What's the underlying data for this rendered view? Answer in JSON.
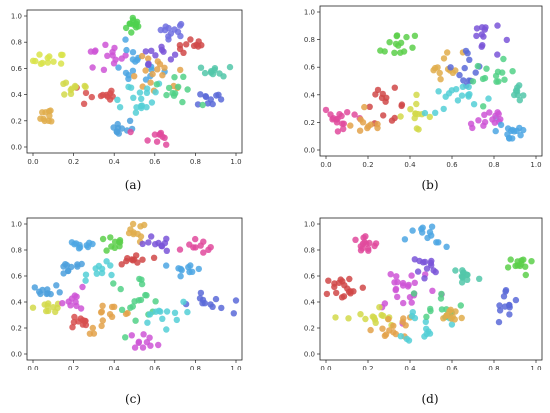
{
  "figure": {
    "captions": [
      "(a)",
      "(b)",
      "(c)",
      "(d)"
    ]
  },
  "chart_data": [
    {
      "type": "scatter",
      "title": "",
      "xlabel": "",
      "ylabel": "",
      "xlim": [
        0.0,
        1.0
      ],
      "ylim": [
        0.0,
        1.0
      ],
      "xticks": [
        "0.0",
        "0.2",
        "0.4",
        "0.6",
        "0.8",
        "1.0"
      ],
      "yticks": [
        "0.0",
        "0.2",
        "0.4",
        "0.6",
        "0.8",
        "1.0"
      ],
      "grid": false,
      "clusters": [
        {
          "color": "#4fd14f",
          "cx": 0.5,
          "cy": 0.93,
          "sx": 0.02,
          "sy": 0.04,
          "n": 12
        },
        {
          "color": "#7070e0",
          "cx": 0.68,
          "cy": 0.9,
          "sx": 0.04,
          "sy": 0.03,
          "n": 12
        },
        {
          "color": "#d04848",
          "cx": 0.79,
          "cy": 0.76,
          "sx": 0.04,
          "sy": 0.03,
          "n": 10
        },
        {
          "color": "#d9e34a",
          "cx": 0.08,
          "cy": 0.66,
          "sx": 0.04,
          "sy": 0.03,
          "n": 12
        },
        {
          "color": "#52c7a9",
          "cx": 0.91,
          "cy": 0.58,
          "sx": 0.04,
          "sy": 0.02,
          "n": 10
        },
        {
          "color": "#ce55d6",
          "cx": 0.35,
          "cy": 0.68,
          "sx": 0.06,
          "sy": 0.06,
          "n": 14
        },
        {
          "color": "#4ca6e3",
          "cx": 0.5,
          "cy": 0.62,
          "sx": 0.07,
          "sy": 0.08,
          "n": 18
        },
        {
          "color": "#e3a24a",
          "cx": 0.62,
          "cy": 0.52,
          "sx": 0.07,
          "sy": 0.08,
          "n": 16
        },
        {
          "color": "#5a6ad8",
          "cx": 0.87,
          "cy": 0.37,
          "sx": 0.03,
          "sy": 0.03,
          "n": 10
        },
        {
          "color": "#d74f4f",
          "cx": 0.33,
          "cy": 0.4,
          "sx": 0.05,
          "sy": 0.05,
          "n": 12
        },
        {
          "color": "#53cfd6",
          "cx": 0.5,
          "cy": 0.38,
          "sx": 0.08,
          "sy": 0.07,
          "n": 18
        },
        {
          "color": "#d2d94a",
          "cx": 0.2,
          "cy": 0.45,
          "sx": 0.05,
          "sy": 0.04,
          "n": 10
        },
        {
          "color": "#e0ad4b",
          "cx": 0.08,
          "cy": 0.25,
          "sx": 0.02,
          "sy": 0.04,
          "n": 10
        },
        {
          "color": "#4ca0dd",
          "cx": 0.42,
          "cy": 0.14,
          "sx": 0.04,
          "sy": 0.04,
          "n": 10
        },
        {
          "color": "#e04a9c",
          "cx": 0.62,
          "cy": 0.08,
          "sx": 0.04,
          "sy": 0.03,
          "n": 10
        },
        {
          "color": "#7a55d8",
          "cx": 0.61,
          "cy": 0.72,
          "sx": 0.04,
          "sy": 0.04,
          "n": 10
        },
        {
          "color": "#52d187",
          "cx": 0.7,
          "cy": 0.42,
          "sx": 0.05,
          "sy": 0.05,
          "n": 12
        }
      ]
    },
    {
      "type": "scatter",
      "title": "",
      "xlabel": "",
      "ylabel": "",
      "xlim": [
        0.0,
        1.0
      ],
      "ylim": [
        0.0,
        1.0
      ],
      "xticks": [
        "0.0",
        "0.2",
        "0.4",
        "0.6",
        "0.8",
        "1.0"
      ],
      "yticks": [
        "0.0",
        "0.2",
        "0.4",
        "0.6",
        "0.8",
        "1.0"
      ],
      "grid": false,
      "clusters": [
        {
          "color": "#5ccf4a",
          "cx": 0.34,
          "cy": 0.77,
          "sx": 0.04,
          "sy": 0.07,
          "n": 14
        },
        {
          "color": "#7a55d8",
          "cx": 0.75,
          "cy": 0.82,
          "sx": 0.04,
          "sy": 0.08,
          "n": 12
        },
        {
          "color": "#e0ad4b",
          "cx": 0.57,
          "cy": 0.62,
          "sx": 0.04,
          "sy": 0.05,
          "n": 12
        },
        {
          "color": "#5a6ad8",
          "cx": 0.68,
          "cy": 0.58,
          "sx": 0.03,
          "sy": 0.08,
          "n": 12
        },
        {
          "color": "#52d187",
          "cx": 0.8,
          "cy": 0.52,
          "sx": 0.05,
          "sy": 0.06,
          "n": 14
        },
        {
          "color": "#e04a9c",
          "cx": 0.08,
          "cy": 0.24,
          "sx": 0.06,
          "sy": 0.04,
          "n": 16
        },
        {
          "color": "#d04848",
          "cx": 0.28,
          "cy": 0.32,
          "sx": 0.05,
          "sy": 0.06,
          "n": 14
        },
        {
          "color": "#d2d94a",
          "cx": 0.42,
          "cy": 0.26,
          "sx": 0.04,
          "sy": 0.06,
          "n": 12
        },
        {
          "color": "#53cfd6",
          "cx": 0.63,
          "cy": 0.36,
          "sx": 0.08,
          "sy": 0.05,
          "n": 18
        },
        {
          "color": "#ce55d6",
          "cx": 0.77,
          "cy": 0.22,
          "sx": 0.05,
          "sy": 0.05,
          "n": 14
        },
        {
          "color": "#4ca6e3",
          "cx": 0.89,
          "cy": 0.14,
          "sx": 0.04,
          "sy": 0.05,
          "n": 14
        },
        {
          "color": "#e3a24a",
          "cx": 0.2,
          "cy": 0.18,
          "sx": 0.04,
          "sy": 0.04,
          "n": 10
        },
        {
          "color": "#52c7a9",
          "cx": 0.92,
          "cy": 0.42,
          "sx": 0.02,
          "sy": 0.04,
          "n": 8
        }
      ]
    },
    {
      "type": "scatter",
      "title": "",
      "xlabel": "",
      "ylabel": "",
      "xlim": [
        0.0,
        1.0
      ],
      "ylim": [
        0.0,
        1.0
      ],
      "xticks": [
        "0.0",
        "0.2",
        "0.4",
        "0.6",
        "0.8",
        "1.0"
      ],
      "yticks": [
        "0.0",
        "0.2",
        "0.4",
        "0.6",
        "0.8",
        "1.0"
      ],
      "grid": false,
      "clusters": [
        {
          "color": "#e0ad4b",
          "cx": 0.5,
          "cy": 0.93,
          "sx": 0.03,
          "sy": 0.04,
          "n": 10
        },
        {
          "color": "#4ca6e3",
          "cx": 0.23,
          "cy": 0.83,
          "sx": 0.04,
          "sy": 0.02,
          "n": 10
        },
        {
          "color": "#5ccf4a",
          "cx": 0.4,
          "cy": 0.84,
          "sx": 0.04,
          "sy": 0.03,
          "n": 10
        },
        {
          "color": "#7a55d8",
          "cx": 0.6,
          "cy": 0.84,
          "sx": 0.04,
          "sy": 0.03,
          "n": 10
        },
        {
          "color": "#e04a9c",
          "cx": 0.83,
          "cy": 0.83,
          "sx": 0.04,
          "sy": 0.03,
          "n": 10
        },
        {
          "color": "#4ca0dd",
          "cx": 0.18,
          "cy": 0.65,
          "sx": 0.04,
          "sy": 0.03,
          "n": 10
        },
        {
          "color": "#53cfd6",
          "cx": 0.35,
          "cy": 0.64,
          "sx": 0.04,
          "sy": 0.03,
          "n": 10
        },
        {
          "color": "#d04848",
          "cx": 0.5,
          "cy": 0.72,
          "sx": 0.04,
          "sy": 0.03,
          "n": 10
        },
        {
          "color": "#4ca6e3",
          "cx": 0.77,
          "cy": 0.65,
          "sx": 0.04,
          "sy": 0.03,
          "n": 10
        },
        {
          "color": "#4ca0dd",
          "cx": 0.07,
          "cy": 0.49,
          "sx": 0.04,
          "sy": 0.02,
          "n": 10
        },
        {
          "color": "#d2d94a",
          "cx": 0.07,
          "cy": 0.36,
          "sx": 0.04,
          "sy": 0.02,
          "n": 10
        },
        {
          "color": "#ce55d6",
          "cx": 0.22,
          "cy": 0.42,
          "sx": 0.04,
          "sy": 0.04,
          "n": 10
        },
        {
          "color": "#e3a24a",
          "cx": 0.38,
          "cy": 0.28,
          "sx": 0.06,
          "sy": 0.06,
          "n": 14
        },
        {
          "color": "#52d187",
          "cx": 0.5,
          "cy": 0.45,
          "sx": 0.08,
          "sy": 0.08,
          "n": 18
        },
        {
          "color": "#5a6ad8",
          "cx": 0.87,
          "cy": 0.38,
          "sx": 0.05,
          "sy": 0.04,
          "n": 12
        },
        {
          "color": "#d74f4f",
          "cx": 0.22,
          "cy": 0.24,
          "sx": 0.03,
          "sy": 0.03,
          "n": 10
        },
        {
          "color": "#ce55d6",
          "cx": 0.55,
          "cy": 0.1,
          "sx": 0.04,
          "sy": 0.03,
          "n": 10
        },
        {
          "color": "#53cfd6",
          "cx": 0.62,
          "cy": 0.3,
          "sx": 0.06,
          "sy": 0.05,
          "n": 12
        }
      ]
    },
    {
      "type": "scatter",
      "title": "",
      "xlabel": "",
      "ylabel": "",
      "xlim": [
        0.0,
        1.0
      ],
      "ylim": [
        0.0,
        1.0
      ],
      "xticks": [
        "0.0",
        "0.2",
        "0.4",
        "0.6",
        "0.8",
        "1.0"
      ],
      "yticks": [
        "0.0",
        "0.2",
        "0.4",
        "0.6",
        "0.8",
        "1.0"
      ],
      "grid": false,
      "clusters": [
        {
          "color": "#e04a9c",
          "cx": 0.18,
          "cy": 0.84,
          "sx": 0.04,
          "sy": 0.04,
          "n": 14
        },
        {
          "color": "#4ca6e3",
          "cx": 0.48,
          "cy": 0.88,
          "sx": 0.05,
          "sy": 0.06,
          "n": 12
        },
        {
          "color": "#5ccf4a",
          "cx": 0.93,
          "cy": 0.68,
          "sx": 0.03,
          "sy": 0.04,
          "n": 12
        },
        {
          "color": "#52c7a9",
          "cx": 0.66,
          "cy": 0.6,
          "sx": 0.04,
          "sy": 0.05,
          "n": 12
        },
        {
          "color": "#d04848",
          "cx": 0.09,
          "cy": 0.51,
          "sx": 0.05,
          "sy": 0.05,
          "n": 18
        },
        {
          "color": "#ce55d6",
          "cx": 0.38,
          "cy": 0.52,
          "sx": 0.08,
          "sy": 0.1,
          "n": 24
        },
        {
          "color": "#5a6ad8",
          "cx": 0.86,
          "cy": 0.36,
          "sx": 0.03,
          "sy": 0.07,
          "n": 12
        },
        {
          "color": "#d2d94a",
          "cx": 0.22,
          "cy": 0.27,
          "sx": 0.06,
          "sy": 0.05,
          "n": 14
        },
        {
          "color": "#e3a24a",
          "cx": 0.32,
          "cy": 0.22,
          "sx": 0.05,
          "sy": 0.06,
          "n": 14
        },
        {
          "color": "#53cfd6",
          "cx": 0.48,
          "cy": 0.22,
          "sx": 0.05,
          "sy": 0.07,
          "n": 14
        },
        {
          "color": "#52d187",
          "cx": 0.55,
          "cy": 0.4,
          "sx": 0.05,
          "sy": 0.06,
          "n": 12
        },
        {
          "color": "#7a55d8",
          "cx": 0.45,
          "cy": 0.65,
          "sx": 0.05,
          "sy": 0.06,
          "n": 12
        },
        {
          "color": "#e0ad4b",
          "cx": 0.6,
          "cy": 0.3,
          "sx": 0.04,
          "sy": 0.04,
          "n": 10
        }
      ]
    }
  ]
}
